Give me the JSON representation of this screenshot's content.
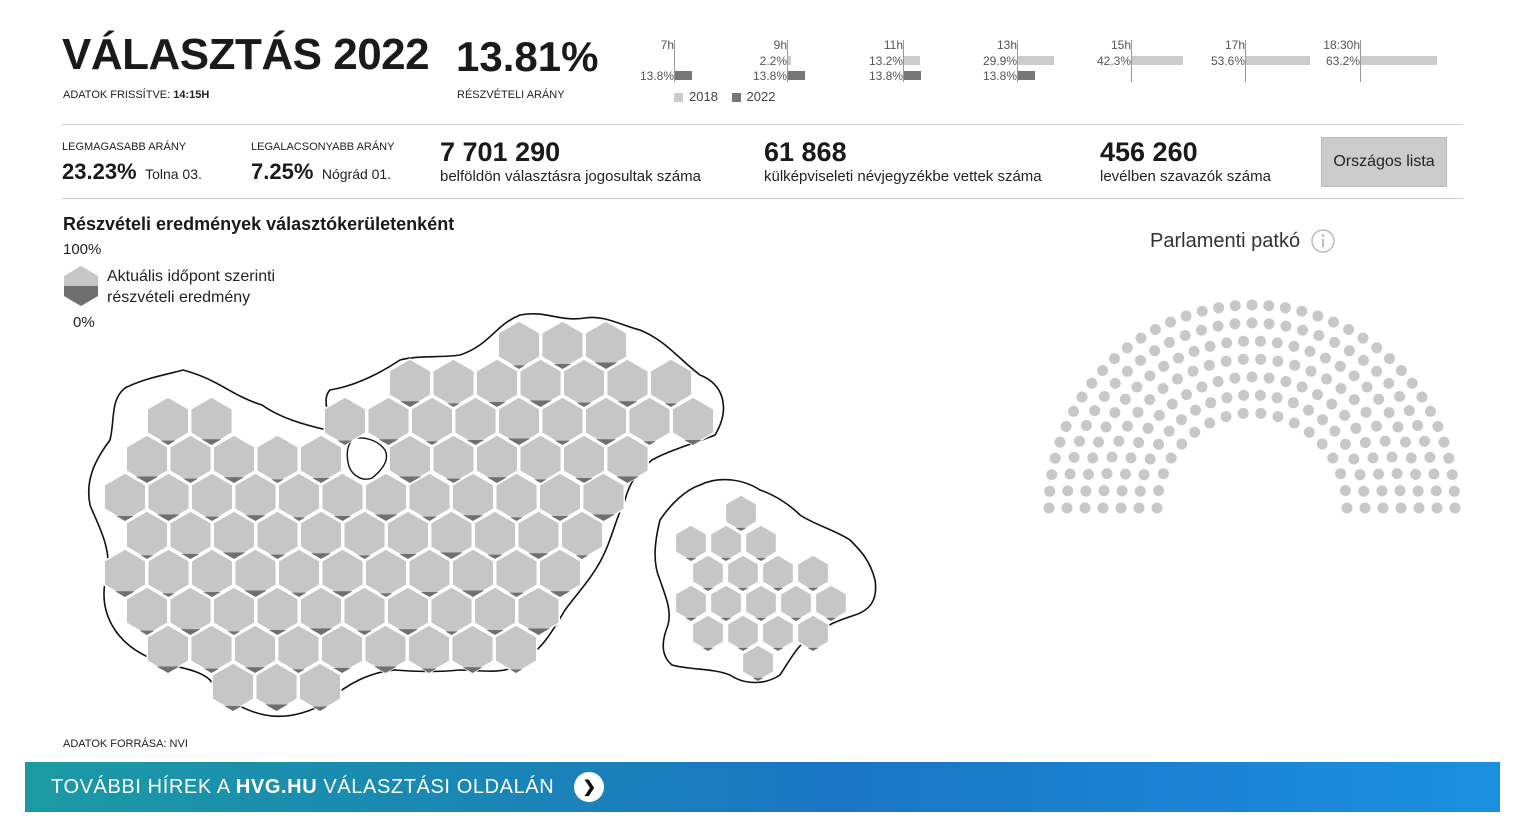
{
  "header": {
    "title": "VÁLASZTÁS 2022",
    "updated_label": "ADATOK FRISSÍTVE:",
    "updated_time": "14:15H",
    "turnout_value": "13.81%",
    "turnout_label": "RÉSZVÉTELI ARÁNY"
  },
  "timeline": [
    {
      "hour": "7h",
      "v2018": "",
      "v2022": "13.8%",
      "f2018": 0,
      "f2022": 0.138
    },
    {
      "hour": "9h",
      "v2018": "2.2%",
      "v2022": "13.8%",
      "f2018": 0.022,
      "f2022": 0.138
    },
    {
      "hour": "11h",
      "v2018": "13.2%",
      "v2022": "13.8%",
      "f2018": 0.132,
      "f2022": 0.138
    },
    {
      "hour": "13h",
      "v2018": "29.9%",
      "v2022": "13.8%",
      "f2018": 0.299,
      "f2022": 0.138
    },
    {
      "hour": "15h",
      "v2018": "42.3%",
      "v2022": "",
      "f2018": 0.423,
      "f2022": 0
    },
    {
      "hour": "17h",
      "v2018": "53.6%",
      "v2022": "",
      "f2018": 0.536,
      "f2022": 0
    },
    {
      "hour": "18:30h",
      "v2018": "63.2%",
      "v2022": "",
      "f2018": 0.632,
      "f2022": 0
    }
  ],
  "timeline_legend": {
    "y2018": "2018",
    "y2022": "2022",
    "color2018": "#cccccc",
    "color2022": "#777777"
  },
  "stats": {
    "highest_label": "LEGMAGASABB ARÁNY",
    "highest_value": "23.23%",
    "highest_district": "Tolna 03.",
    "lowest_label": "LEGALACSONYABB ARÁNY",
    "lowest_value": "7.25%",
    "lowest_district": "Nógrád 01.",
    "eligible_value": "7 701 290",
    "eligible_label": "belföldön választásra jogosultak száma",
    "abroad_value": "61 868",
    "abroad_label": "külképviseleti névjegyzékbe vettek száma",
    "mail_value": "456 260",
    "mail_label": "levélben szavazók száma",
    "national_list_button": "Országos lista"
  },
  "map": {
    "title": "Részvételi eredmények választókerületenként",
    "legend_top": "100%",
    "legend_bottom": "0%",
    "legend_text_line1": "Aktuális időpont szerinti",
    "legend_text_line2": "részvételi eredmény",
    "source": "ADATOK FORRÁSA: NVI",
    "hex_fill": "#c6c6c6",
    "hex_dark": "#6f6f6f"
  },
  "parliament": {
    "title": "Parlamenti patkó",
    "info_icon": "info-icon",
    "seat_color": "#c8c8c8"
  },
  "banner": {
    "prefix": "TOVÁBBI HÍREK A ",
    "brand": "HVG.HU",
    "suffix": " VÁLASZTÁSI OLDALÁN",
    "arrow_icon": "chevron-right-icon"
  }
}
